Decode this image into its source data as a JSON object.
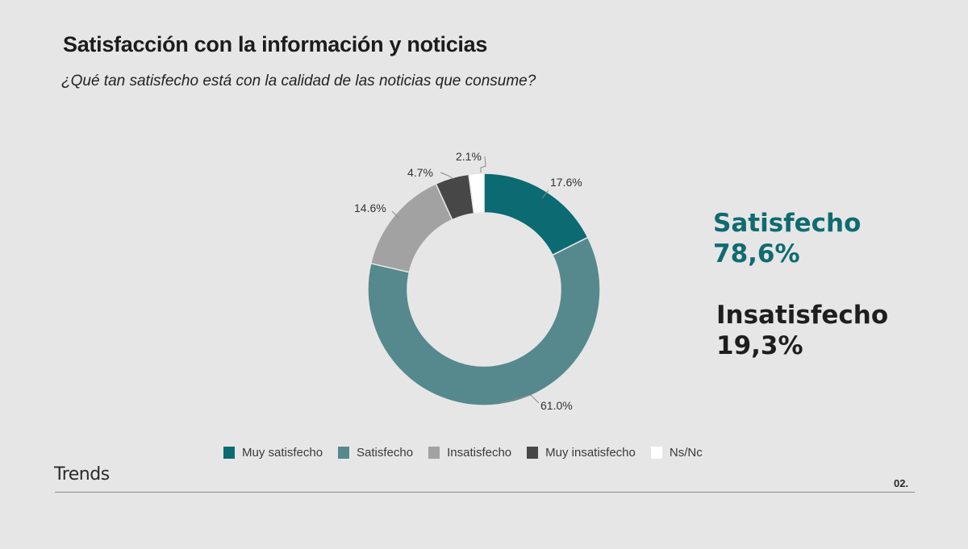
{
  "header": {
    "title": "Satisfacción con la información y noticias",
    "subtitle": "¿Qué tan satisfecho está con la calidad de las noticias que consume?"
  },
  "chart_data": {
    "type": "pie",
    "variant": "donut",
    "title": "Satisfacción con la información y noticias",
    "subtitle": "¿Qué tan satisfecho está con la calidad de las noticias que consume?",
    "categories": [
      "Muy satisfecho",
      "Satisfecho",
      "Insatisfecho",
      "Muy insatisfecho",
      "Ns/Nc"
    ],
    "values": [
      17.6,
      61.0,
      14.6,
      4.7,
      2.1
    ],
    "labels": [
      "17.6%",
      "61.0%",
      "14.6%",
      "4.7%",
      "2.1%"
    ],
    "colors": [
      "#0b6a72",
      "#55898d",
      "#a2a2a2",
      "#474747",
      "#ffffff"
    ],
    "unit": "%",
    "legend_position": "bottom",
    "annotations": [
      {
        "label": "Satisfecho",
        "value": "78,6%",
        "color": "#0f6b70"
      },
      {
        "label": "Insatisfecho",
        "value": "19,3%",
        "color": "#1e1e1e"
      }
    ]
  },
  "summary": {
    "satisfied_label": "Satisfecho",
    "satisfied_value": "78,6%",
    "unsatisfied_label": "Insatisfecho",
    "unsatisfied_value": "19,3%"
  },
  "legend": [
    {
      "label": "Muy satisfecho",
      "color": "#0b6a72"
    },
    {
      "label": "Satisfecho",
      "color": "#55898d"
    },
    {
      "label": "Insatisfecho",
      "color": "#a2a2a2"
    },
    {
      "label": "Muy insatisfecho",
      "color": "#474747"
    },
    {
      "label": "Ns/Nc",
      "color": "#ffffff"
    }
  ],
  "footer": {
    "brand": "Trends",
    "page_number": "02."
  }
}
